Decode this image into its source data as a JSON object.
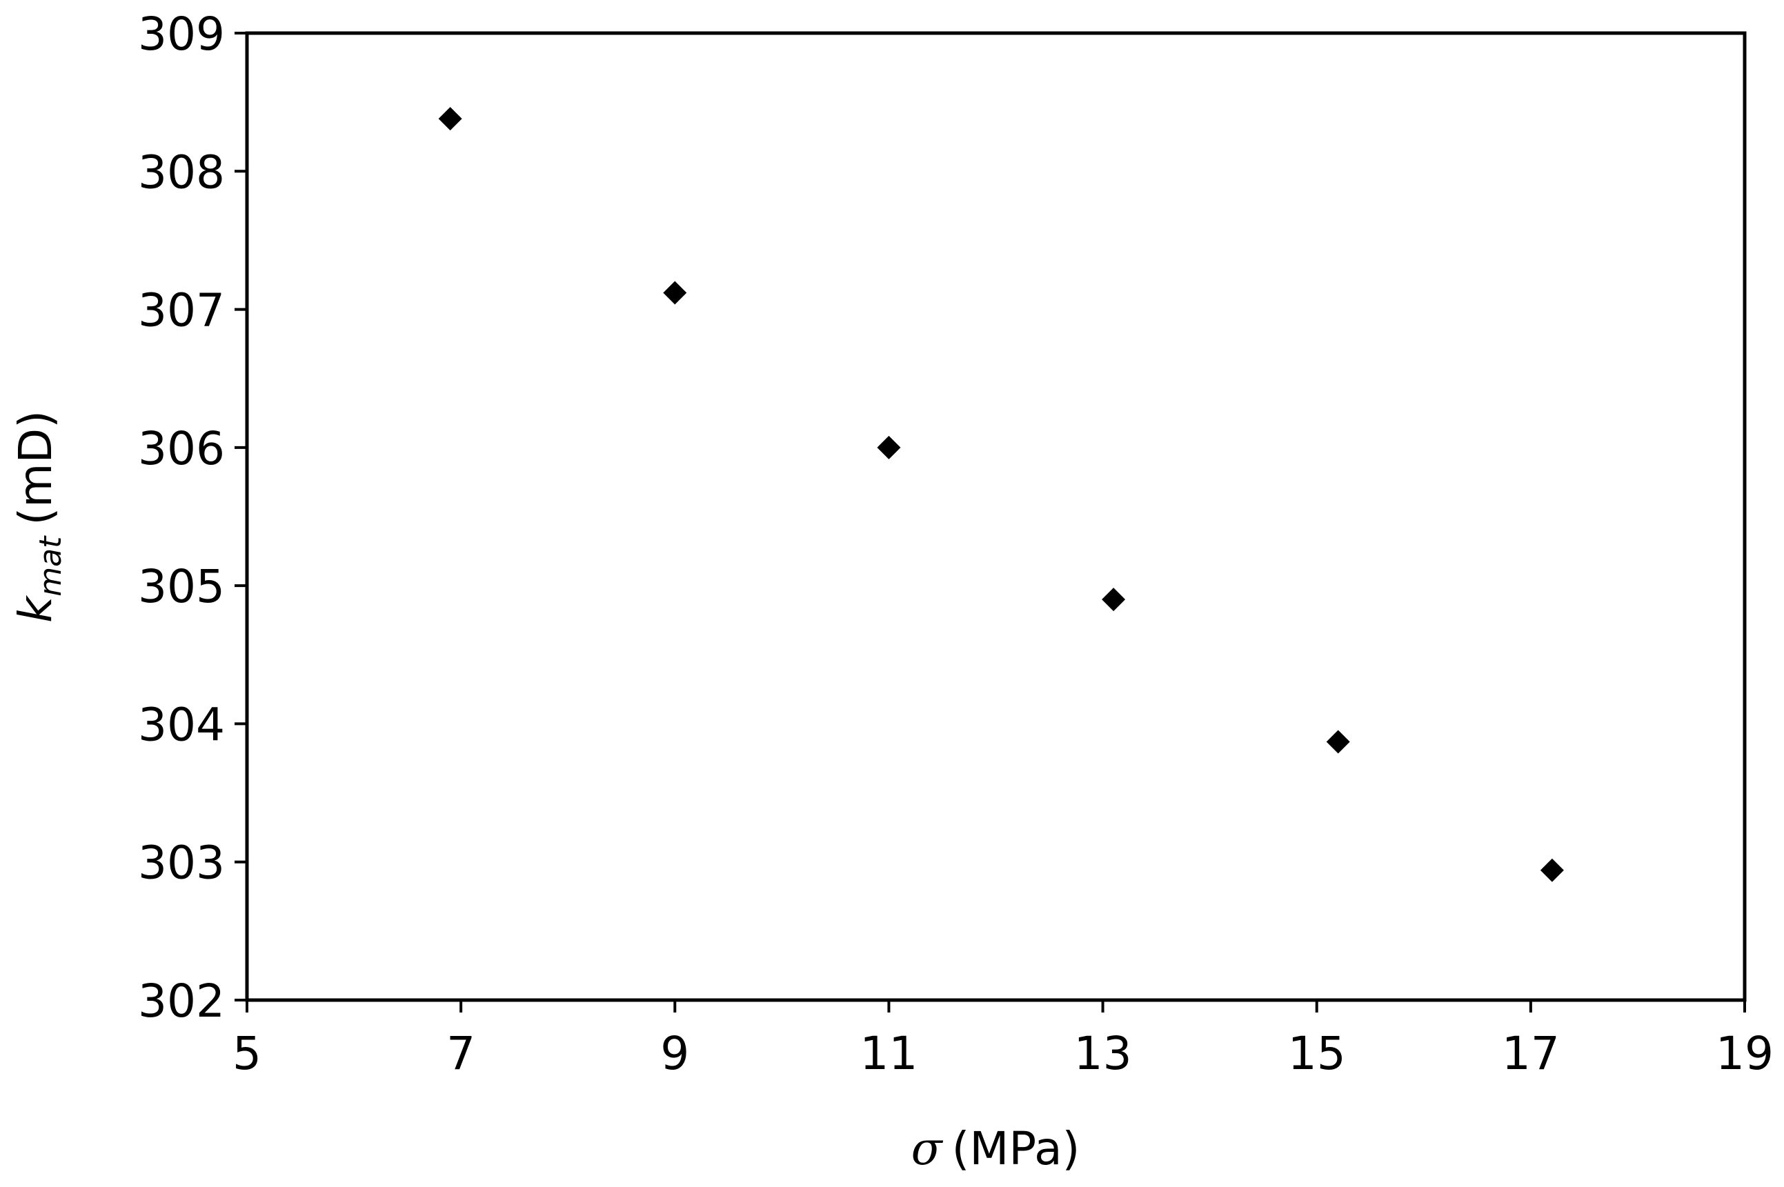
{
  "chart_data": {
    "type": "scatter",
    "title": "",
    "xlabel": {
      "symbol": "σ",
      "unit": "(MPa)"
    },
    "ylabel": {
      "symbol": "k",
      "subscript": "mat",
      "unit": "(mD)"
    },
    "xlim": [
      5,
      19
    ],
    "ylim": [
      302,
      309
    ],
    "x_ticks": [
      5,
      7,
      9,
      11,
      13,
      15,
      17,
      19
    ],
    "y_ticks": [
      302,
      303,
      304,
      305,
      306,
      307,
      308,
      309
    ],
    "grid": false,
    "legend": "none",
    "marker": "diamond",
    "marker_color": "#000000",
    "series": [
      {
        "x": [
          6.9,
          9.0,
          11.0,
          13.1,
          15.2,
          17.2
        ],
        "y": [
          308.38,
          307.12,
          306.0,
          304.9,
          303.87,
          302.94
        ]
      }
    ]
  }
}
